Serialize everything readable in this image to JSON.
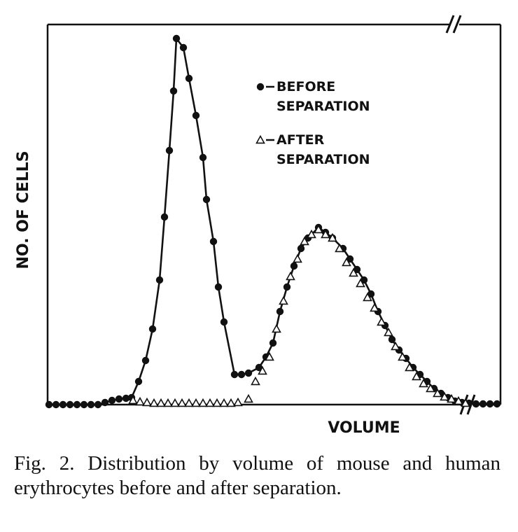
{
  "chart_data": {
    "type": "scatter",
    "xlabel": "VOLUME",
    "ylabel": "NO. OF CELLS",
    "xlim": [
      0,
      647
    ],
    "ylim": [
      0,
      543
    ],
    "series": [
      {
        "name": "BEFORE SEPARATION",
        "color": "#111111",
        "marker": "circle",
        "line": true,
        "x": [
          2,
          12,
          22,
          32,
          42,
          52,
          62,
          72,
          82,
          92,
          102,
          112,
          120,
          130,
          140,
          150,
          160,
          167,
          174,
          180,
          184,
          194,
          202,
          212,
          222,
          227,
          237,
          244,
          252,
          267,
          277,
          287,
          302,
          312,
          322,
          332,
          342,
          352,
          362,
          372,
          387,
          397,
          407,
          422,
          432,
          442,
          452,
          462,
          472,
          482,
          492,
          502,
          512,
          522,
          532,
          542,
          552,
          562,
          572,
          582,
          592,
          602,
          612,
          622,
          632,
          642
        ],
        "values": [
          0,
          0,
          0,
          0,
          0,
          0,
          0,
          0,
          3,
          6,
          8,
          9,
          10,
          33,
          63,
          108,
          178,
          268,
          363,
          448,
          523,
          510,
          466,
          413,
          353,
          293,
          233,
          168,
          118,
          43,
          43,
          45,
          53,
          68,
          88,
          133,
          168,
          198,
          223,
          238,
          253,
          246,
          238,
          223,
          208,
          193,
          178,
          158,
          133,
          113,
          93,
          78,
          66,
          53,
          43,
          33,
          23,
          16,
          10,
          5,
          3,
          2,
          1,
          1,
          1,
          1
        ]
      },
      {
        "name": "AFTER SEPARATION",
        "color": "#111111",
        "marker": "triangle",
        "line": false,
        "x": [
          122,
          132,
          142,
          152,
          162,
          172,
          182,
          192,
          202,
          212,
          222,
          232,
          242,
          252,
          262,
          272,
          287,
          297,
          307,
          317,
          327,
          337,
          347,
          357,
          367,
          377,
          387,
          397,
          407,
          417,
          427,
          437,
          447,
          457,
          467,
          477,
          487,
          497,
          507,
          517,
          527,
          537,
          547,
          557,
          567,
          577,
          587,
          597
        ],
        "values": [
          6,
          4,
          3,
          2,
          2,
          2,
          2,
          2,
          2,
          2,
          2,
          2,
          2,
          2,
          2,
          3,
          8,
          33,
          48,
          68,
          108,
          148,
          183,
          208,
          233,
          243,
          250,
          243,
          238,
          223,
          203,
          188,
          173,
          153,
          138,
          118,
          103,
          83,
          68,
          53,
          40,
          30,
          23,
          16,
          11,
          8,
          5,
          2
        ]
      }
    ]
  },
  "caption": "Fig. 2. Distribution by volume of mouse and human erythrocytes before and after separation."
}
